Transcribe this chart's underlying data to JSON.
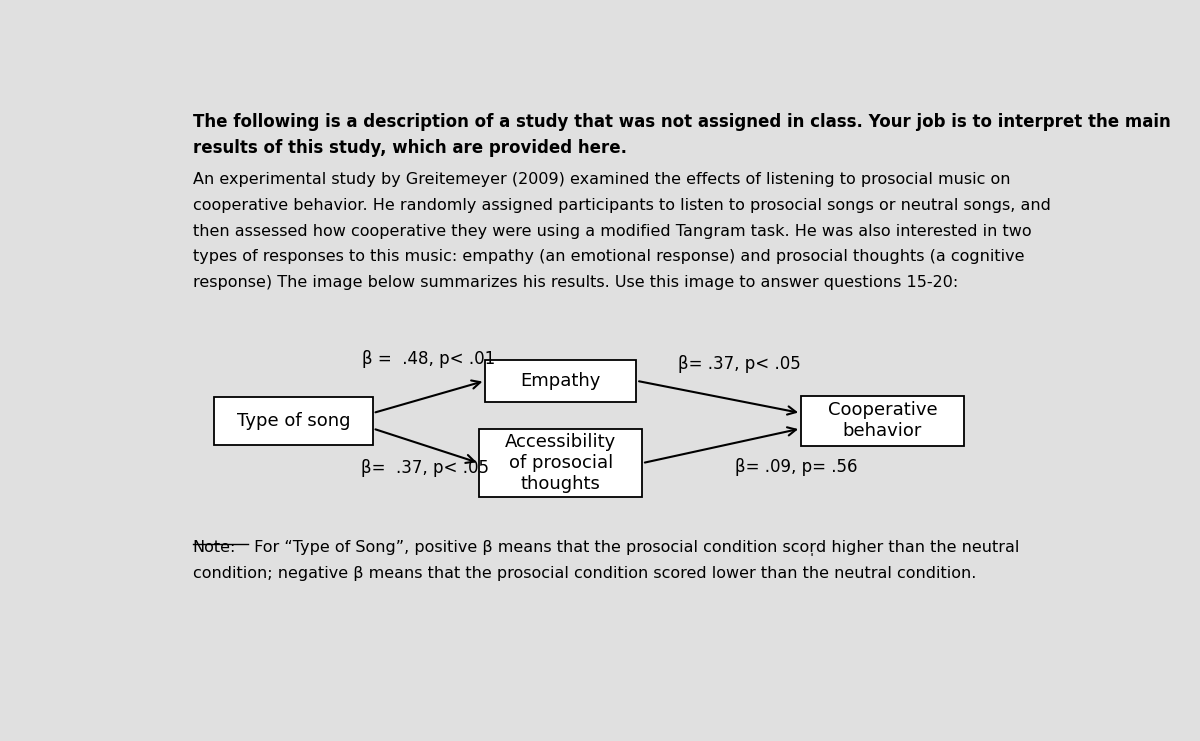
{
  "background_color": "#e0e0e0",
  "box_color": "#ffffff",
  "box_edge_color": "#000000",
  "arrow_color": "#000000",
  "text_color": "#000000",
  "box_type_of_song": "Type of song",
  "box_empathy": "Empathy",
  "box_prosocial_thoughts": "Accessibility\nof prosocial\nthoughts",
  "box_cooperative": "Cooperative\nbehavior",
  "arrow_top_label": "β =  .48, p< .01",
  "arrow_bottom_label": "β=  .37, p< .05",
  "arrow_empathy_coop_label": "β= .37, p< .05",
  "arrow_prosocial_coop_label": "β= .09, p= .56",
  "header_line1": "The following is a description of a study that was not assigned in class. Your job is to interpret the main",
  "header_line2": "results of this study, which are provided here.",
  "body_lines": [
    "An experimental study by Greitemeyer (2009) examined the effects of listening to prosocial music on",
    "cooperative behavior. He randomly assigned participants to listen to prosocial songs or neutral songs, and",
    "then assessed how cooperative they were using a modified Tangram task. He was also interested in two",
    "types of responses to this music: empathy (an emotional response) and prosocial thoughts (a cognitive",
    "response) The image below summarizes his results. Use this image to answer questions 15-20:"
  ],
  "note_label": "Note:",
  "note_line1_rest": " For “Type of Song”, positive β means that the prosocial condition scor̩d higher than the neutral",
  "note_line2": "condition; negative β means that the prosocial condition scored lower than the neutral condition."
}
